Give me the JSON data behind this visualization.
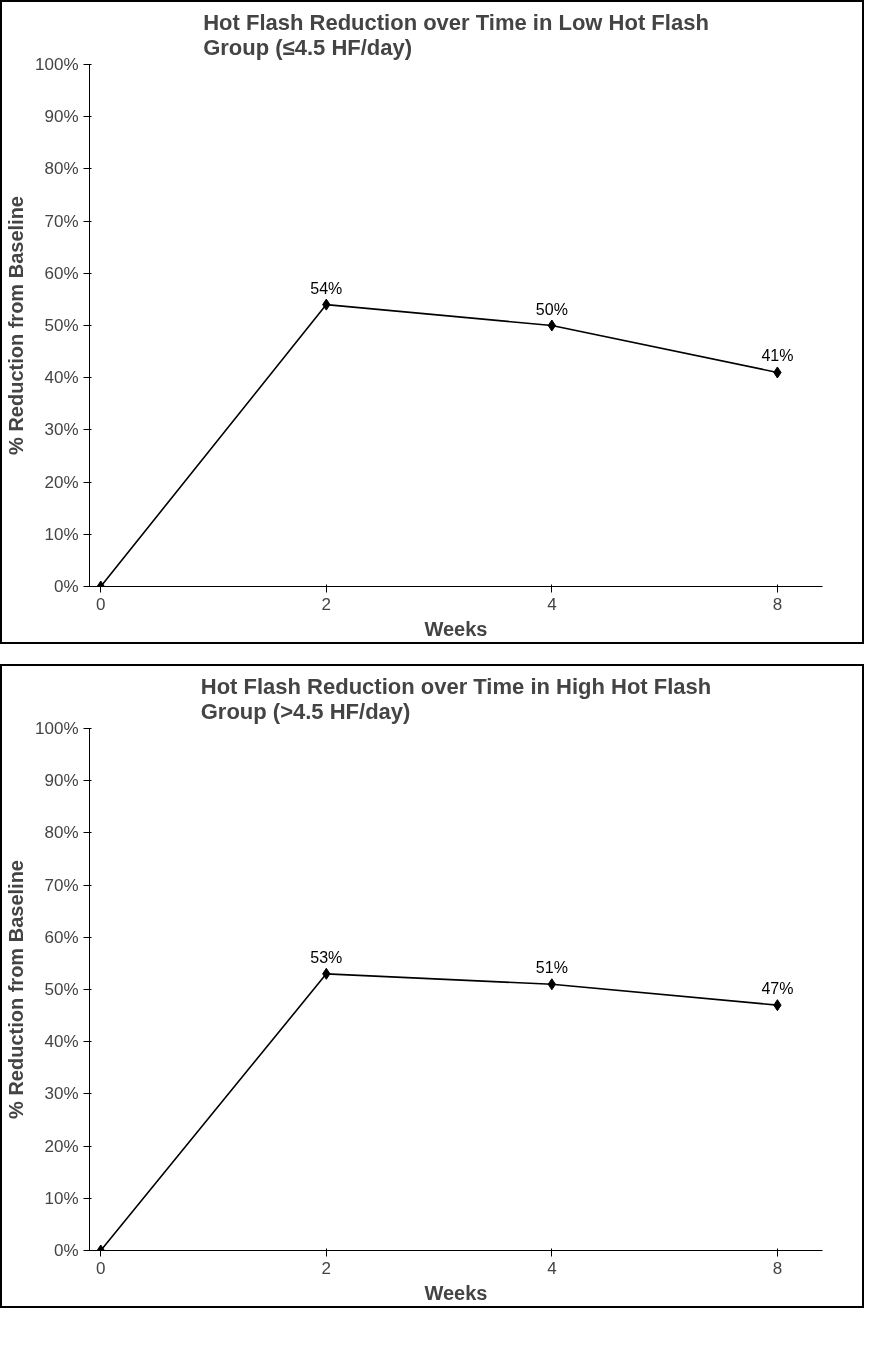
{
  "chart_data": [
    {
      "type": "line",
      "title": "Hot Flash Reduction over Time in Low Hot Flash\nGroup (≤4.5 HF/day)",
      "xlabel": "Weeks",
      "ylabel": "% Reduction from Baseline",
      "categories": [
        "0",
        "2",
        "4",
        "8"
      ],
      "series": [
        {
          "color": "#000000",
          "values": [
            0,
            54,
            50,
            41
          ],
          "value_labels": [
            null,
            "54%",
            "50%",
            "41%"
          ]
        }
      ],
      "ylim": [
        0,
        100
      ],
      "yticks": [
        {
          "value": 0,
          "label": "0%"
        },
        {
          "value": 10,
          "label": "10%"
        },
        {
          "value": 20,
          "label": "20%"
        },
        {
          "value": 30,
          "label": "30%"
        },
        {
          "value": 40,
          "label": "40%"
        },
        {
          "value": 50,
          "label": "50%"
        },
        {
          "value": 60,
          "label": "60%"
        },
        {
          "value": 70,
          "label": "70%"
        },
        {
          "value": 80,
          "label": "80%"
        },
        {
          "value": 90,
          "label": "90%"
        },
        {
          "value": 100,
          "label": "100%"
        }
      ],
      "grid": false,
      "marker": "diamond",
      "line_style": "solid"
    },
    {
      "type": "line",
      "title": "Hot Flash Reduction over Time in High Hot Flash\nGroup (>4.5 HF/day)",
      "xlabel": "Weeks",
      "ylabel": "% Reduction from Baseline",
      "categories": [
        "0",
        "2",
        "4",
        "8"
      ],
      "series": [
        {
          "color": "#000000",
          "values": [
            0,
            53,
            51,
            47
          ],
          "value_labels": [
            null,
            "53%",
            "51%",
            "47%"
          ]
        }
      ],
      "ylim": [
        0,
        100
      ],
      "yticks": [
        {
          "value": 0,
          "label": "0%"
        },
        {
          "value": 10,
          "label": "10%"
        },
        {
          "value": 20,
          "label": "20%"
        },
        {
          "value": 30,
          "label": "30%"
        },
        {
          "value": 40,
          "label": "40%"
        },
        {
          "value": 50,
          "label": "50%"
        },
        {
          "value": 60,
          "label": "60%"
        },
        {
          "value": 70,
          "label": "70%"
        },
        {
          "value": 80,
          "label": "80%"
        },
        {
          "value": 90,
          "label": "90%"
        },
        {
          "value": 100,
          "label": "100%"
        }
      ],
      "grid": false,
      "marker": "diamond",
      "line_style": "solid"
    }
  ]
}
